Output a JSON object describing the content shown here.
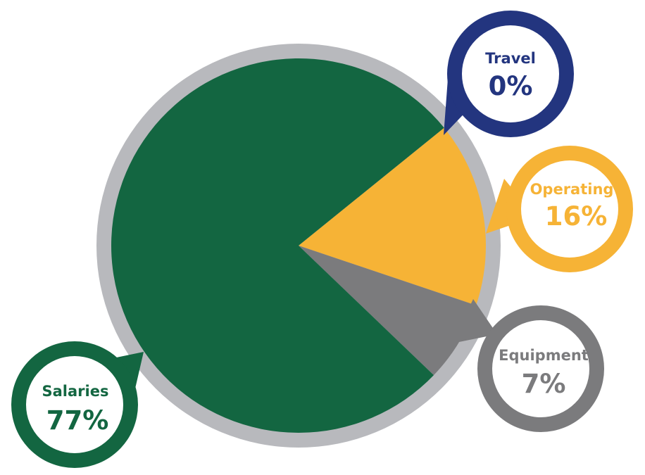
{
  "chart_data": {
    "type": "pie",
    "start_angle_deg": -39,
    "slices": [
      {
        "key": "travel",
        "label": "Travel",
        "value_label": "0%",
        "value": 0,
        "color": "#23357f"
      },
      {
        "key": "operating",
        "label": "Operating",
        "value_label": "16%",
        "value": 16,
        "color": "#f6b336"
      },
      {
        "key": "equipment",
        "label": "Equipment",
        "value_label": "7%",
        "value": 7,
        "color": "#7b7b7d"
      },
      {
        "key": "salaries",
        "label": "Salaries",
        "value_label": "77%",
        "value": 77,
        "color": "#136641"
      }
    ],
    "ring_color": "#b8b9bd",
    "legend": "callouts"
  }
}
